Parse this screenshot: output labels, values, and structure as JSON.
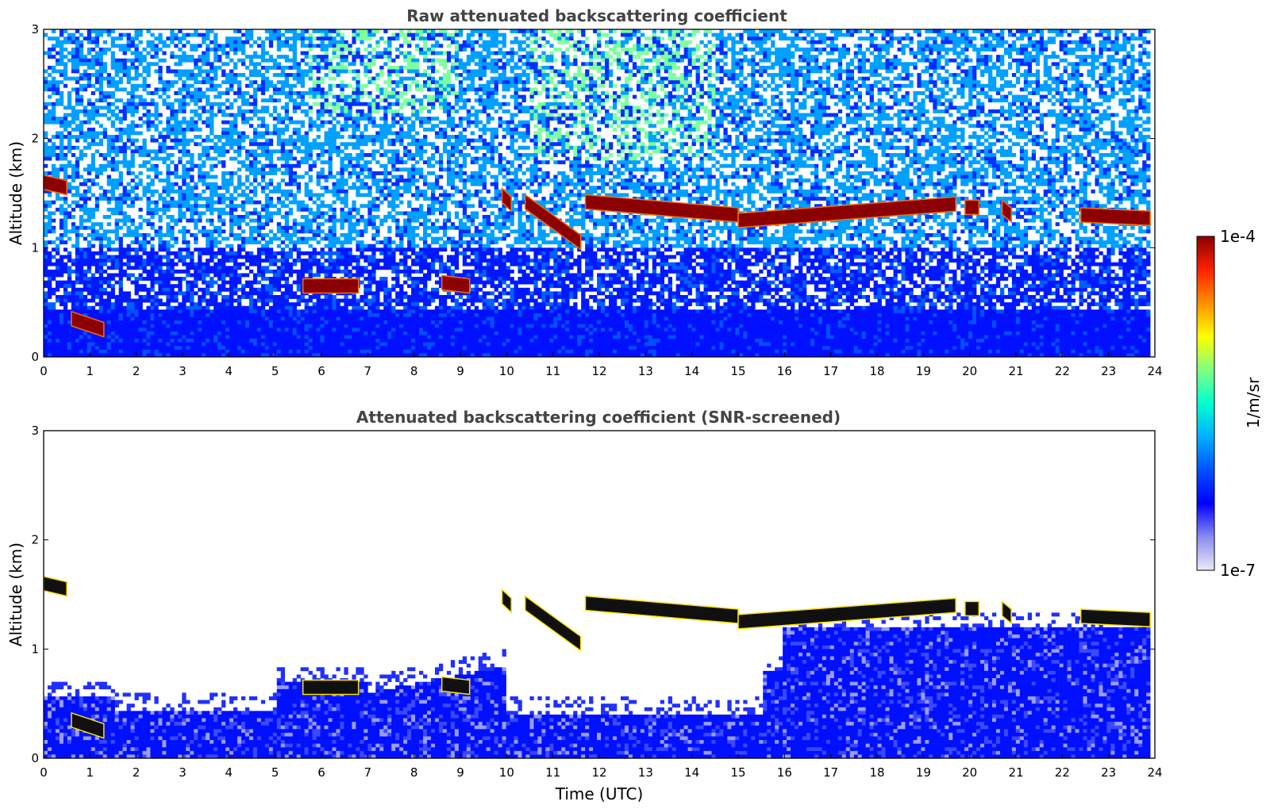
{
  "chart_data": [
    {
      "type": "heatmap",
      "title": "Raw attenuated backscattering coefficient",
      "xlabel": "",
      "ylabel": "Altitude (km)",
      "xlim": [
        0,
        24
      ],
      "ylim": [
        0,
        3
      ],
      "xticks": [
        "0",
        "1",
        "2",
        "3",
        "4",
        "5",
        "6",
        "7",
        "8",
        "9",
        "10",
        "11",
        "12",
        "13",
        "14",
        "15",
        "16",
        "17",
        "18",
        "19",
        "20",
        "21",
        "22",
        "23",
        "24"
      ],
      "yticks": [
        "0",
        "1",
        "2",
        "3"
      ],
      "x_start": 0,
      "x_end": 23.9,
      "noise": "heavy",
      "cloud_layers": [
        {
          "t": [
            0.0,
            0.5
          ],
          "alt_km": [
            1.6,
            1.55
          ]
        },
        {
          "t": [
            0.6,
            1.3
          ],
          "alt_km": [
            0.35,
            0.25
          ]
        },
        {
          "t": [
            5.6,
            6.8
          ],
          "alt_km": [
            0.65,
            0.65
          ]
        },
        {
          "t": [
            8.6,
            9.2
          ],
          "alt_km": [
            0.68,
            0.65
          ]
        },
        {
          "t": [
            9.9,
            10.1
          ],
          "alt_km": [
            1.48,
            1.4
          ]
        },
        {
          "t": [
            10.4,
            11.6
          ],
          "alt_km": [
            1.42,
            1.05
          ]
        },
        {
          "t": [
            11.7,
            15.0
          ],
          "alt_km": [
            1.42,
            1.3
          ]
        },
        {
          "t": [
            15.0,
            19.7
          ],
          "alt_km": [
            1.25,
            1.4
          ]
        },
        {
          "t": [
            19.9,
            20.2
          ],
          "alt_km": [
            1.37,
            1.37
          ]
        },
        {
          "t": [
            20.7,
            20.9
          ],
          "alt_km": [
            1.37,
            1.3
          ]
        },
        {
          "t": [
            22.4,
            23.9
          ],
          "alt_km": [
            1.3,
            1.27
          ]
        }
      ]
    },
    {
      "type": "heatmap",
      "title": "Attenuated backscattering coefficient (SNR-screened)",
      "xlabel": "Time (UTC)",
      "ylabel": "Altitude (km)",
      "xlim": [
        0,
        24
      ],
      "ylim": [
        0,
        3
      ],
      "xticks": [
        "0",
        "1",
        "2",
        "3",
        "4",
        "5",
        "6",
        "7",
        "8",
        "9",
        "10",
        "11",
        "12",
        "13",
        "14",
        "15",
        "16",
        "17",
        "18",
        "19",
        "20",
        "21",
        "22",
        "23",
        "24"
      ],
      "yticks": [
        "0",
        "1",
        "2",
        "3"
      ],
      "x_start": 0,
      "x_end": 23.9,
      "noise": "screened",
      "cloud_layers": [
        {
          "t": [
            0.0,
            0.5
          ],
          "alt_km": [
            1.6,
            1.55
          ]
        },
        {
          "t": [
            0.6,
            1.3
          ],
          "alt_km": [
            0.35,
            0.25
          ]
        },
        {
          "t": [
            5.6,
            6.8
          ],
          "alt_km": [
            0.65,
            0.65
          ]
        },
        {
          "t": [
            8.6,
            9.2
          ],
          "alt_km": [
            0.68,
            0.65
          ]
        },
        {
          "t": [
            9.9,
            10.1
          ],
          "alt_km": [
            1.48,
            1.4
          ]
        },
        {
          "t": [
            10.4,
            11.6
          ],
          "alt_km": [
            1.42,
            1.05
          ]
        },
        {
          "t": [
            11.7,
            15.0
          ],
          "alt_km": [
            1.42,
            1.3
          ]
        },
        {
          "t": [
            15.0,
            19.7
          ],
          "alt_km": [
            1.25,
            1.4
          ]
        },
        {
          "t": [
            19.9,
            20.2
          ],
          "alt_km": [
            1.37,
            1.37
          ]
        },
        {
          "t": [
            20.7,
            20.9
          ],
          "alt_km": [
            1.37,
            1.3
          ]
        },
        {
          "t": [
            22.4,
            23.9
          ],
          "alt_km": [
            1.3,
            1.27
          ]
        }
      ]
    }
  ],
  "colorbar": {
    "label": "1/m/sr",
    "min_label": "1e-7",
    "max_label": "1e-4",
    "scale": "log",
    "colormap": [
      "#ebeaf7",
      "#8a8cf0",
      "#0000ff",
      "#0050ff",
      "#00b0ff",
      "#00ffd0",
      "#7fff7f",
      "#ffff00",
      "#ff9000",
      "#ff2000",
      "#8b0000"
    ]
  }
}
